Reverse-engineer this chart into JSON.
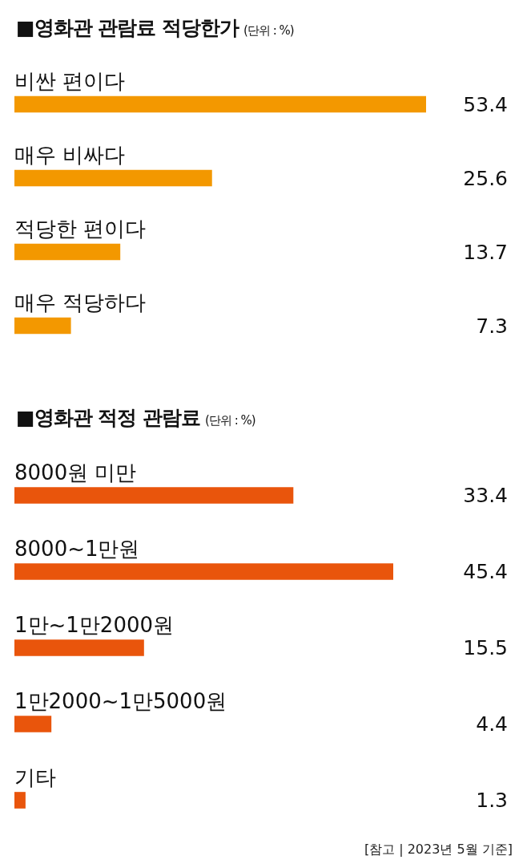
{
  "chart_data": [
    {
      "type": "bar",
      "orientation": "horizontal",
      "title": "■영화관 관람료 적당한가",
      "subtitle": "(단위 : %)",
      "categories": [
        "비싼 편이다",
        "매우 비싸다",
        "적당한 편이다",
        "매우 적당하다"
      ],
      "values": [
        53.4,
        25.6,
        13.7,
        7.3
      ],
      "color": "#f39800",
      "data_labels": true,
      "tick_labels": "y"
    },
    {
      "type": "bar",
      "orientation": "horizontal",
      "title": "■영화관 적정 관람료",
      "subtitle": "(단위 : %)",
      "categories": [
        "8000원 미만",
        "8000~1만원",
        "1만~1만2000원",
        "1만2000~1만5000원",
        "기타"
      ],
      "values": [
        33.4,
        45.4,
        15.5,
        4.4,
        1.3
      ],
      "color": "#e9550c",
      "data_labels": true,
      "tick_labels": "y",
      "annotations": [
        "[참고 | 2023년 5월 기준]"
      ]
    }
  ]
}
